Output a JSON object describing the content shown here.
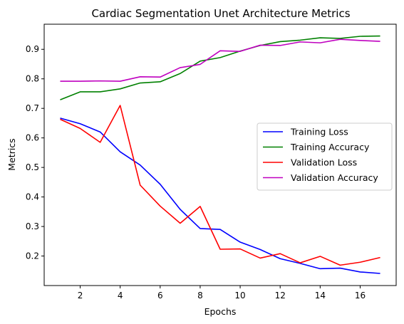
{
  "chart_data": {
    "type": "line",
    "title": "Cardiac Segmentation Unet Architecture Metrics",
    "xlabel": "Epochs",
    "ylabel": "Metrics",
    "x": [
      1,
      2,
      3,
      4,
      5,
      6,
      7,
      8,
      9,
      10,
      11,
      12,
      13,
      14,
      15,
      16,
      17
    ],
    "xlim": [
      0.2,
      17.8
    ],
    "ylim": [
      0.1,
      0.985
    ],
    "xticks": [
      2,
      4,
      6,
      8,
      10,
      12,
      14,
      16
    ],
    "yticks": [
      0.2,
      0.3,
      0.4,
      0.5,
      0.6,
      0.7,
      0.8,
      0.9
    ],
    "grid": false,
    "legend_position": "center-right",
    "series": [
      {
        "name": "Training Loss",
        "color": "#0000ff",
        "values": [
          0.667,
          0.648,
          0.62,
          0.553,
          0.508,
          0.443,
          0.358,
          0.293,
          0.29,
          0.247,
          0.222,
          0.191,
          0.175,
          0.157,
          0.159,
          0.146,
          0.141
        ]
      },
      {
        "name": "Training Accuracy",
        "color": "#008000",
        "values": [
          0.729,
          0.756,
          0.756,
          0.766,
          0.786,
          0.79,
          0.818,
          0.86,
          0.872,
          0.894,
          0.913,
          0.926,
          0.931,
          0.939,
          0.937,
          0.944,
          0.945
        ]
      },
      {
        "name": "Validation Loss",
        "color": "#ff0000",
        "values": [
          0.663,
          0.632,
          0.585,
          0.71,
          0.44,
          0.369,
          0.311,
          0.368,
          0.223,
          0.224,
          0.193,
          0.208,
          0.177,
          0.199,
          0.169,
          0.179,
          0.195
        ]
      },
      {
        "name": "Validation Accuracy",
        "color": "#bf00bf",
        "values": [
          0.792,
          0.792,
          0.793,
          0.792,
          0.807,
          0.806,
          0.838,
          0.849,
          0.895,
          0.893,
          0.914,
          0.913,
          0.925,
          0.922,
          0.934,
          0.93,
          0.927
        ]
      }
    ]
  }
}
